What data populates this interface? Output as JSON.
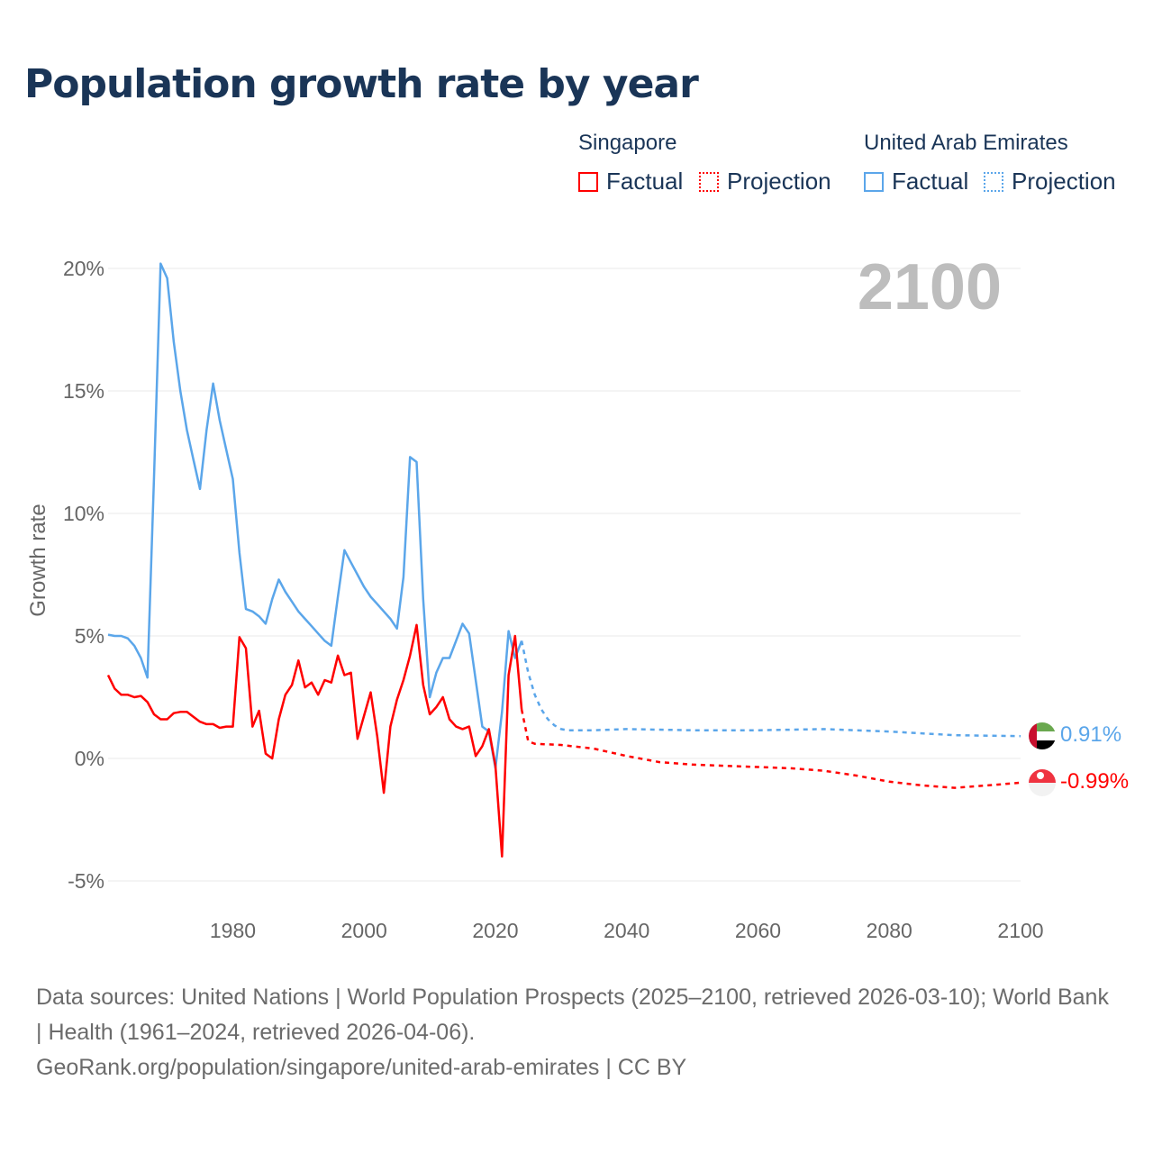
{
  "title": "Population growth rate by year",
  "legend": {
    "groups": [
      {
        "name": "Singapore",
        "factual": "Factual",
        "projection": "Projection",
        "color": "#ff0000"
      },
      {
        "name": "United Arab Emirates",
        "factual": "Factual",
        "projection": "Projection",
        "color": "#5ba6ea"
      }
    ]
  },
  "year_label": "2100",
  "end_labels": {
    "uae": "0.91%",
    "singapore": "-0.99%"
  },
  "source": {
    "line1": "Data sources: United Nations | World Population Prospects (2025–2100, retrieved 2026-03-10); World Bank | Health (1961–2024, retrieved 2026-04-06).",
    "line2": "GeoRank.org/population/singapore/united-arab-emirates | CC BY"
  },
  "chart_data": {
    "type": "line",
    "title": "Population growth rate by year",
    "xlabel": "",
    "ylabel": "Growth rate",
    "xlim": [
      1961,
      2100
    ],
    "ylim": [
      -5,
      20
    ],
    "xticks": [
      1980,
      2000,
      2020,
      2040,
      2060,
      2080,
      2100
    ],
    "yticks": [
      {
        "v": -5,
        "label": "-5%"
      },
      {
        "v": 0,
        "label": "0%"
      },
      {
        "v": 5,
        "label": "5%"
      },
      {
        "v": 10,
        "label": "10%"
      },
      {
        "v": 15,
        "label": "15%"
      },
      {
        "v": 20,
        "label": "20%"
      }
    ],
    "series": [
      {
        "name": "United Arab Emirates Factual",
        "color": "#5ba6ea",
        "dashed": false,
        "x": [
          1961,
          1962,
          1963,
          1964,
          1965,
          1966,
          1967,
          1968,
          1969,
          1970,
          1971,
          1972,
          1973,
          1974,
          1975,
          1976,
          1977,
          1978,
          1979,
          1980,
          1981,
          1982,
          1983,
          1984,
          1985,
          1986,
          1987,
          1988,
          1989,
          1990,
          1991,
          1992,
          1993,
          1994,
          1995,
          1996,
          1997,
          1998,
          1999,
          2000,
          2001,
          2002,
          2003,
          2004,
          2005,
          2006,
          2007,
          2008,
          2009,
          2010,
          2011,
          2012,
          2013,
          2014,
          2015,
          2016,
          2017,
          2018,
          2019,
          2020,
          2021,
          2022,
          2023,
          2024
        ],
        "y": [
          5.05,
          5.0,
          5.0,
          4.9,
          4.6,
          4.1,
          3.3,
          11.5,
          20.2,
          19.6,
          17.0,
          15.0,
          13.4,
          12.2,
          11.0,
          13.4,
          15.3,
          13.8,
          12.6,
          11.4,
          8.4,
          6.1,
          6.0,
          5.8,
          5.5,
          6.5,
          7.3,
          6.8,
          6.4,
          6.0,
          5.7,
          5.4,
          5.1,
          4.8,
          4.6,
          6.6,
          8.5,
          8.0,
          7.5,
          7.0,
          6.6,
          6.3,
          6.0,
          5.7,
          5.3,
          7.4,
          12.3,
          12.1,
          6.5,
          2.5,
          3.5,
          4.1,
          4.1,
          4.8,
          5.5,
          5.1,
          3.2,
          1.3,
          1.1,
          -0.4,
          1.9,
          5.2,
          4.1,
          4.8
        ]
      },
      {
        "name": "United Arab Emirates Projection",
        "color": "#5ba6ea",
        "dashed": true,
        "x": [
          2024,
          2025,
          2026,
          2027,
          2028,
          2029,
          2030,
          2031,
          2035,
          2040,
          2050,
          2060,
          2070,
          2080,
          2090,
          2100
        ],
        "y": [
          4.8,
          3.5,
          2.6,
          2.0,
          1.6,
          1.35,
          1.2,
          1.15,
          1.15,
          1.2,
          1.15,
          1.15,
          1.2,
          1.1,
          0.95,
          0.91
        ]
      },
      {
        "name": "Singapore Factual",
        "color": "#ff0000",
        "dashed": false,
        "x": [
          1961,
          1962,
          1963,
          1964,
          1965,
          1966,
          1967,
          1968,
          1969,
          1970,
          1971,
          1972,
          1973,
          1974,
          1975,
          1976,
          1977,
          1978,
          1979,
          1980,
          1981,
          1982,
          1983,
          1984,
          1985,
          1986,
          1987,
          1988,
          1989,
          1990,
          1991,
          1992,
          1993,
          1994,
          1995,
          1996,
          1997,
          1998,
          1999,
          2000,
          2001,
          2002,
          2003,
          2004,
          2005,
          2006,
          2007,
          2008,
          2009,
          2010,
          2011,
          2012,
          2013,
          2014,
          2015,
          2016,
          2017,
          2018,
          2019,
          2020,
          2021,
          2022,
          2023,
          2024
        ],
        "y": [
          3.4,
          2.85,
          2.6,
          2.6,
          2.5,
          2.55,
          2.3,
          1.8,
          1.6,
          1.6,
          1.85,
          1.9,
          1.9,
          1.7,
          1.5,
          1.4,
          1.4,
          1.25,
          1.3,
          1.3,
          4.95,
          4.5,
          1.3,
          1.95,
          0.2,
          0.0,
          1.6,
          2.6,
          3.0,
          4.0,
          2.9,
          3.1,
          2.6,
          3.2,
          3.1,
          4.2,
          3.4,
          3.5,
          0.8,
          1.75,
          2.7,
          0.9,
          -1.4,
          1.3,
          2.4,
          3.2,
          4.2,
          5.45,
          3.0,
          1.8,
          2.1,
          2.5,
          1.6,
          1.3,
          1.2,
          1.3,
          0.1,
          0.5,
          1.2,
          -0.3,
          -4.0,
          3.4,
          5.0,
          2.0
        ]
      },
      {
        "name": "Singapore Projection",
        "color": "#ff0000",
        "dashed": true,
        "x": [
          2024,
          2025,
          2026,
          2030,
          2035,
          2040,
          2045,
          2050,
          2055,
          2060,
          2065,
          2070,
          2075,
          2080,
          2085,
          2090,
          2095,
          2100
        ],
        "y": [
          2.0,
          0.7,
          0.6,
          0.55,
          0.4,
          0.1,
          -0.15,
          -0.25,
          -0.3,
          -0.35,
          -0.4,
          -0.5,
          -0.7,
          -0.95,
          -1.1,
          -1.2,
          -1.1,
          -0.99
        ]
      }
    ]
  }
}
